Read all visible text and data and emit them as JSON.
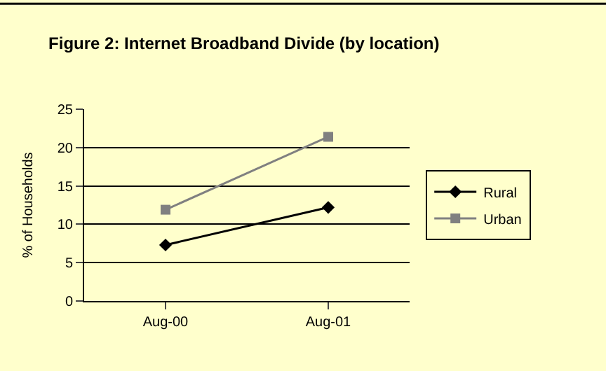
{
  "chart_data": {
    "type": "line",
    "title": "Figure 2: Internet Broadband Divide (by location)",
    "ylabel": "% of Households",
    "categories": [
      "Aug-00",
      "Aug-01"
    ],
    "series": [
      {
        "name": "Rural",
        "color": "#000000",
        "values": [
          7.3,
          12.2
        ],
        "marker": "diamond"
      },
      {
        "name": "Urban",
        "color": "#808080",
        "values": [
          11.9,
          21.4
        ],
        "marker": "square"
      }
    ],
    "ylim": [
      0,
      25
    ],
    "yticks": [
      0,
      5,
      10,
      15,
      20,
      25
    ],
    "grid": "y",
    "legend": "right",
    "line_style": "solid"
  }
}
